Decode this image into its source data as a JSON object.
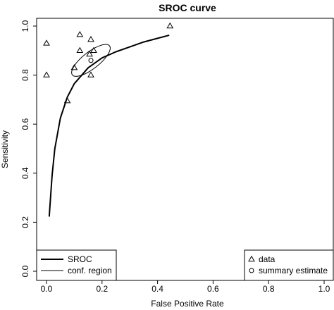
{
  "chart_data": {
    "type": "scatter",
    "title": "SROC curve",
    "xlabel": "False Positive Rate",
    "ylabel": "Sensitivity",
    "xlim": [
      0.0,
      1.0
    ],
    "ylim": [
      0.0,
      1.0
    ],
    "x_ticks": [
      0.0,
      0.2,
      0.4,
      0.6,
      0.8,
      1.0
    ],
    "y_ticks": [
      0.0,
      0.2,
      0.4,
      0.6,
      0.8,
      1.0
    ],
    "x_tick_labels": [
      "0.0",
      "0.2",
      "0.4",
      "0.6",
      "0.8",
      "1.0"
    ],
    "y_tick_labels": [
      "0.0",
      "0.2",
      "0.4",
      "0.6",
      "0.8",
      "1.0"
    ],
    "grid": false,
    "data_points": {
      "marker": "triangle",
      "points": [
        {
          "x": 0.0,
          "y": 0.93
        },
        {
          "x": 0.0,
          "y": 0.8
        },
        {
          "x": 0.075,
          "y": 0.695
        },
        {
          "x": 0.1,
          "y": 0.83
        },
        {
          "x": 0.12,
          "y": 0.965
        },
        {
          "x": 0.12,
          "y": 0.9
        },
        {
          "x": 0.155,
          "y": 0.885
        },
        {
          "x": 0.16,
          "y": 0.945
        },
        {
          "x": 0.16,
          "y": 0.8
        },
        {
          "x": 0.17,
          "y": 0.9
        },
        {
          "x": 0.445,
          "y": 1.0
        }
      ]
    },
    "summary_estimate": {
      "marker": "circle",
      "x": 0.16,
      "y": 0.86
    },
    "sroc_curve": {
      "style": "thick",
      "x_range": [
        0.01,
        0.44
      ],
      "points": [
        {
          "x": 0.01,
          "y": 0.225
        },
        {
          "x": 0.02,
          "y": 0.39
        },
        {
          "x": 0.03,
          "y": 0.5
        },
        {
          "x": 0.05,
          "y": 0.625
        },
        {
          "x": 0.075,
          "y": 0.71
        },
        {
          "x": 0.1,
          "y": 0.765
        },
        {
          "x": 0.15,
          "y": 0.83
        },
        {
          "x": 0.2,
          "y": 0.87
        },
        {
          "x": 0.25,
          "y": 0.895
        },
        {
          "x": 0.3,
          "y": 0.915
        },
        {
          "x": 0.35,
          "y": 0.935
        },
        {
          "x": 0.4,
          "y": 0.95
        },
        {
          "x": 0.44,
          "y": 0.962
        }
      ]
    },
    "confidence_region": {
      "style": "thin",
      "center": {
        "x": 0.16,
        "y": 0.86
      },
      "semi_major_fpr": 0.085,
      "semi_minor_fpr": 0.03,
      "rotation_deg": 38
    },
    "legends": [
      {
        "position": "bottom-left",
        "entries": [
          {
            "label": "SROC",
            "symbol": "thick-line"
          },
          {
            "label": "conf. region",
            "symbol": "thin-line"
          }
        ]
      },
      {
        "position": "bottom-right",
        "entries": [
          {
            "label": "data",
            "symbol": "triangle"
          },
          {
            "label": "summary estimate",
            "symbol": "circle"
          }
        ]
      }
    ]
  }
}
